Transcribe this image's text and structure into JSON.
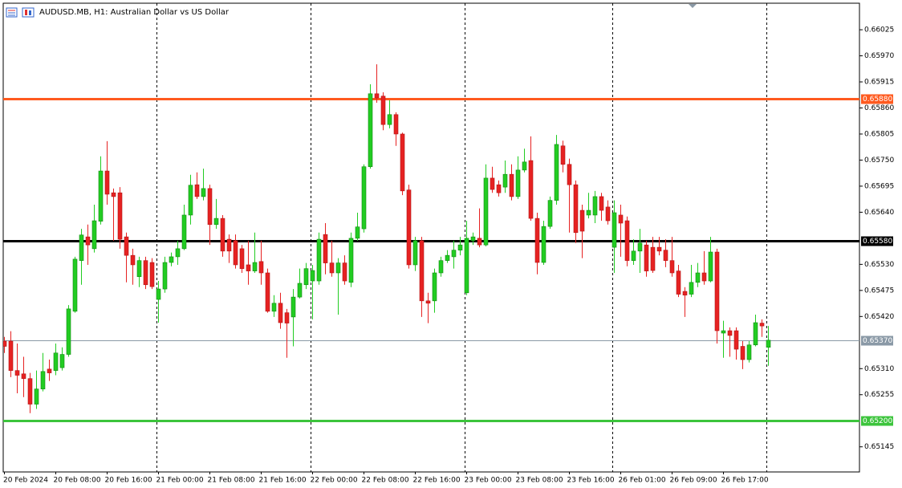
{
  "chart_data": {
    "type": "candlestick",
    "title": "AUDUSD.MB, H1:  Australian Dollar vs US Dollar",
    "categories": [
      "20 Feb 2024",
      null,
      null,
      null,
      null,
      null,
      null,
      null,
      "20 Feb 08:00",
      null,
      null,
      null,
      null,
      null,
      null,
      null,
      "20 Feb 16:00",
      null,
      null,
      null,
      null,
      null,
      null,
      null,
      "21 Feb 00:00",
      null,
      null,
      null,
      null,
      null,
      null,
      null,
      "21 Feb 08:00",
      null,
      null,
      null,
      null,
      null,
      null,
      null,
      "21 Feb 16:00",
      null,
      null,
      null,
      null,
      null,
      null,
      null,
      "22 Feb 00:00",
      null,
      null,
      null,
      null,
      null,
      null,
      null,
      "22 Feb 08:00",
      null,
      null,
      null,
      null,
      null,
      null,
      null,
      "22 Feb 16:00",
      null,
      null,
      null,
      null,
      null,
      null,
      null,
      "23 Feb 00:00",
      null,
      null,
      null,
      null,
      null,
      null,
      null,
      "23 Feb 08:00",
      null,
      null,
      null,
      null,
      null,
      null,
      null,
      "23 Feb 16:00",
      null,
      null,
      null,
      null,
      null,
      null,
      null,
      "26 Feb 01:00",
      null,
      null,
      null,
      null,
      null,
      null,
      null,
      "26 Feb 09:00",
      null,
      null,
      null,
      null,
      null,
      null,
      null,
      "26 Feb 17:00",
      null,
      null,
      null,
      null,
      null,
      null,
      null
    ],
    "open": [
      0.65368,
      0.65368,
      0.65306,
      0.65299,
      0.65289,
      0.65235,
      0.65267,
      0.65309,
      0.65306,
      0.65312,
      0.6534,
      0.65431,
      0.65538,
      0.65588,
      0.65563,
      0.65621,
      0.65727,
      0.65681,
      0.65681,
      0.65588,
      0.65549,
      0.65504,
      0.65538,
      0.65534,
      0.65456,
      0.65478,
      0.65534,
      0.65546,
      0.65563,
      0.65634,
      0.65698,
      0.65673,
      0.6569,
      0.65614,
      0.65627,
      0.65583,
      0.6558,
      0.65563,
      0.65529,
      0.65516,
      0.65536,
      0.65512,
      0.65431,
      0.65448,
      0.65428,
      0.65419,
      0.65461,
      0.65487,
      0.65495,
      0.65495,
      0.65593,
      0.65533,
      0.65512,
      0.65533,
      0.65492,
      0.65585,
      0.65605,
      0.65736,
      0.6589,
      0.65885,
      0.65825,
      0.65846,
      0.65805,
      0.65687,
      0.65529,
      0.6558,
      0.65453,
      0.65453,
      0.65512,
      0.65538,
      0.65546,
      0.6556,
      0.6547,
      0.6558,
      0.65585,
      0.65571,
      0.65712,
      0.65698,
      0.65693,
      0.6572,
      0.65673,
      0.65729,
      0.65749,
      0.65627,
      0.65534,
      0.6561,
      0.65665,
      0.6578,
      0.65741,
      0.65698,
      0.65644,
      0.65634,
      0.65634,
      0.65673,
      0.65651,
      0.65566,
      0.65634,
      0.65622,
      0.65538,
      0.65558,
      0.65571,
      0.65566,
      0.65566,
      0.6556,
      0.65538,
      0.65516,
      0.65473,
      0.65467,
      0.65492,
      0.65512,
      0.65495,
      0.65556,
      0.65385,
      0.6539,
      0.6539,
      0.65357,
      0.65329,
      0.6536,
      0.65406,
      0.65355
    ],
    "high": [
      0.65377,
      0.65389,
      0.65363,
      0.65335,
      0.65301,
      0.65306,
      0.65343,
      0.65329,
      0.65363,
      0.65355,
      0.65444,
      0.65546,
      0.65605,
      0.65614,
      0.65656,
      0.65758,
      0.6579,
      0.6569,
      0.65693,
      0.65597,
      0.65563,
      0.65546,
      0.65546,
      0.65543,
      0.65495,
      0.65546,
      0.65555,
      0.6558,
      0.65656,
      0.65719,
      0.65724,
      0.65732,
      0.65698,
      0.65668,
      0.65634,
      0.65593,
      0.65593,
      0.65571,
      0.6558,
      0.65597,
      0.6558,
      0.65521,
      0.65465,
      0.6547,
      0.65436,
      0.65478,
      0.65521,
      0.65533,
      0.65529,
      0.65597,
      0.65617,
      0.6558,
      0.65543,
      0.65549,
      0.65597,
      0.65639,
      0.65741,
      0.6591,
      0.65952,
      0.65893,
      0.65876,
      0.65851,
      0.65808,
      0.65698,
      0.65588,
      0.65588,
      0.6547,
      0.65521,
      0.65546,
      0.6556,
      0.6558,
      0.65588,
      0.65622,
      0.65597,
      0.65648,
      0.65741,
      0.65736,
      0.65707,
      0.65749,
      0.65741,
      0.65758,
      0.65774,
      0.658,
      0.65639,
      0.65622,
      0.65673,
      0.65803,
      0.65791,
      0.65753,
      0.65707,
      0.65656,
      0.65681,
      0.65685,
      0.65681,
      0.65665,
      0.65665,
      0.65656,
      0.65631,
      0.65583,
      0.65605,
      0.6558,
      0.65588,
      0.65588,
      0.65583,
      0.65588,
      0.65529,
      0.65482,
      0.65529,
      0.65533,
      0.65558,
      0.65588,
      0.65563,
      0.65411,
      0.65397,
      0.65397,
      0.65368,
      0.65368,
      0.65424,
      0.65414,
      0.654
    ],
    "low": [
      0.65343,
      0.65292,
      0.65258,
      0.6525,
      0.65216,
      0.65225,
      0.65262,
      0.65284,
      0.65296,
      0.65306,
      0.65335,
      0.65428,
      0.65487,
      0.65529,
      0.65555,
      0.65614,
      0.65656,
      0.6558,
      0.65563,
      0.65492,
      0.65487,
      0.65482,
      0.65478,
      0.65478,
      0.65407,
      0.6547,
      0.65526,
      0.65529,
      0.6556,
      0.65614,
      0.65668,
      0.65665,
      0.65571,
      0.65605,
      0.65546,
      0.65533,
      0.65521,
      0.65512,
      0.65487,
      0.65512,
      0.65487,
      0.65428,
      0.65419,
      0.65394,
      0.65333,
      0.65357,
      0.65458,
      0.65478,
      0.65414,
      0.65487,
      0.65509,
      0.65504,
      0.65424,
      0.65487,
      0.65482,
      0.6558,
      0.65597,
      0.65732,
      0.65871,
      0.65813,
      0.65817,
      0.6578,
      0.65676,
      0.65521,
      0.65516,
      0.65419,
      0.65406,
      0.65428,
      0.65504,
      0.65533,
      0.65521,
      0.65549,
      0.65465,
      0.65571,
      0.65566,
      0.65568,
      0.65681,
      0.65673,
      0.65681,
      0.65665,
      0.65668,
      0.65724,
      0.65622,
      0.65509,
      0.65529,
      0.65605,
      0.65656,
      0.65724,
      0.65597,
      0.65575,
      0.65543,
      0.65627,
      0.65617,
      0.65622,
      0.65614,
      0.65512,
      0.65546,
      0.65526,
      0.65529,
      0.65512,
      0.65504,
      0.65512,
      0.65549,
      0.65524,
      0.65504,
      0.65461,
      0.65419,
      0.65461,
      0.65482,
      0.65487,
      0.65492,
      0.65363,
      0.65333,
      0.65335,
      0.65329,
      0.65309,
      0.65323,
      0.65357,
      0.65377,
      0.65316
    ],
    "close": [
      0.65357,
      0.65306,
      0.65296,
      0.65289,
      0.65235,
      0.65267,
      0.65304,
      0.65301,
      0.65343,
      0.6534,
      0.65436,
      0.65541,
      0.65592,
      0.65571,
      0.65622,
      0.65727,
      0.65678,
      0.65673,
      0.65583,
      0.65549,
      0.65529,
      0.65538,
      0.65487,
      0.65483,
      0.65478,
      0.65534,
      0.65546,
      0.65563,
      0.65634,
      0.65697,
      0.65673,
      0.6569,
      0.65614,
      0.65627,
      0.65558,
      0.65558,
      0.65529,
      0.65521,
      0.65516,
      0.65534,
      0.65512,
      0.65431,
      0.65448,
      0.65407,
      0.65406,
      0.65461,
      0.6549,
      0.65521,
      0.65517,
      0.65583,
      0.65533,
      0.65512,
      0.65533,
      0.65495,
      0.65585,
      0.65609,
      0.65736,
      0.6589,
      0.65881,
      0.65825,
      0.65846,
      0.65805,
      0.65685,
      0.65529,
      0.6558,
      0.65453,
      0.65448,
      0.65512,
      0.65538,
      0.65549,
      0.6556,
      0.65571,
      0.65585,
      0.65588,
      0.65571,
      0.65712,
      0.65688,
      0.65681,
      0.6572,
      0.65673,
      0.65729,
      0.65746,
      0.65627,
      0.65534,
      0.6561,
      0.65665,
      0.65783,
      0.65741,
      0.65698,
      0.65597,
      0.656,
      0.65644,
      0.65673,
      0.65644,
      0.65622,
      0.65639,
      0.65617,
      0.65538,
      0.65558,
      0.65575,
      0.65516,
      0.65517,
      0.65558,
      0.65538,
      0.65512,
      0.65467,
      0.65465,
      0.65492,
      0.65512,
      0.65495,
      0.65556,
      0.6539,
      0.6539,
      0.6538,
      0.65351,
      0.65329,
      0.6536,
      0.65407,
      0.654,
      0.6537
    ],
    "up_color": "#22cc22",
    "down_color": "#e62222",
    "ylim": [
      0.65092,
      0.66081
    ],
    "yticks": [
      0.66025,
      {
        "value": 0.6597,
        "label": "0.65970"
      },
      0.65915,
      {
        "value": 0.6586,
        "label": "0.65860"
      },
      0.65805,
      {
        "value": 0.6575,
        "label": "0.65750"
      },
      0.65695,
      {
        "value": 0.6564,
        "label": "0.65640"
      },
      {
        "value": 0.6553,
        "label": "0.65530"
      },
      0.65475,
      {
        "value": 0.6542,
        "label": "0.65420"
      },
      {
        "value": 0.6531,
        "label": "0.65310"
      },
      0.65255,
      0.65145
    ],
    "hlines": [
      {
        "value": 0.6588,
        "label": "0.65880",
        "color": "#ff5a1f"
      },
      {
        "value": 0.6558,
        "label": "0.65580",
        "color": "#000000"
      },
      {
        "value": 0.652,
        "label": "0.65200",
        "color": "#3cc43c"
      }
    ],
    "price_line": {
      "value": 0.6537,
      "label": "0.65370",
      "color": "#8a99a6"
    }
  }
}
